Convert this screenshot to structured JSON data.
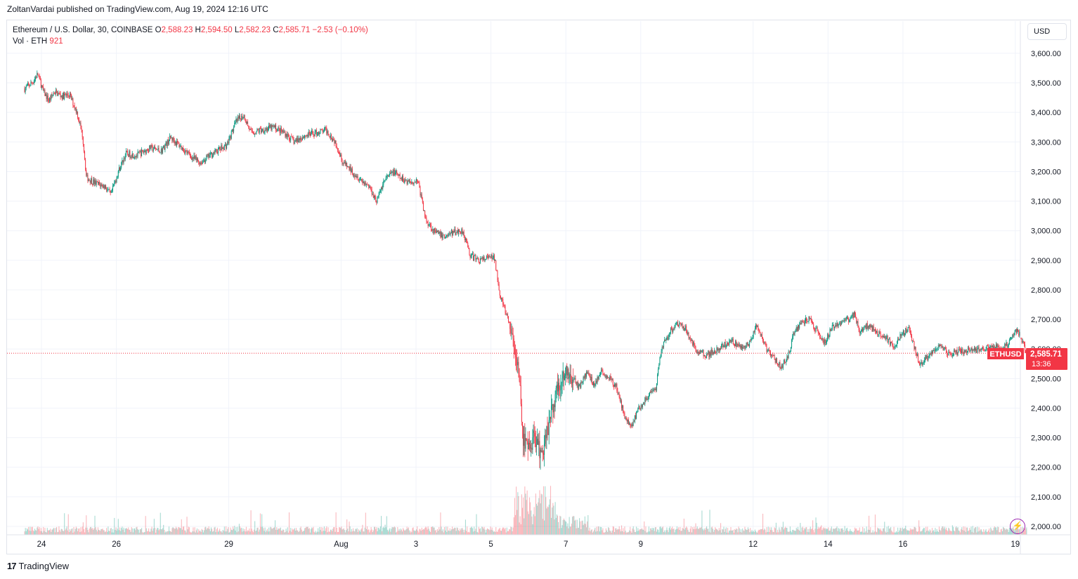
{
  "publisher": "ZoltanVardai published on TradingView.com, Aug 19, 2024 12:16 UTC",
  "legend": {
    "symbol": "Ethereum / U.S. Dollar, 30, COINBASE",
    "o_label": "O",
    "o_value": "2,588.23",
    "h_label": "H",
    "h_value": "2,594.50",
    "l_label": "L",
    "l_value": "2,582.23",
    "c_label": "C",
    "c_value": "2,585.71",
    "change": "−2.53 (−0.10%)",
    "vol_label": "Vol · ETH",
    "vol_value": "921"
  },
  "currency": "USD",
  "price_tag": {
    "symbol": "ETHUSD",
    "price": "2,585.71",
    "countdown": "13:36"
  },
  "footer": {
    "brand": "TradingView",
    "logo": "17"
  },
  "colors": {
    "up": "#089981",
    "down": "#f23645",
    "grid": "#f0f3fa",
    "axis_text": "#131722"
  },
  "chart_data": {
    "type": "candlestick",
    "timeframe": "30",
    "ylim": [
      1975,
      3650
    ],
    "y_ticks": [
      "3,600.00",
      "3,500.00",
      "3,400.00",
      "3,300.00",
      "3,200.00",
      "3,100.00",
      "3,000.00",
      "2,900.00",
      "2,800.00",
      "2,700.00",
      "2,600.00",
      "2,500.00",
      "2,400.00",
      "2,300.00",
      "2,200.00",
      "2,100.00",
      "2,000.00"
    ],
    "y_tick_values": [
      3600,
      3500,
      3400,
      3300,
      3200,
      3100,
      3000,
      2900,
      2800,
      2700,
      2600,
      2500,
      2400,
      2300,
      2200,
      2100,
      2000
    ],
    "x_ticks": [
      "24",
      "26",
      "29",
      "Aug",
      "3",
      "5",
      "7",
      "9",
      "12",
      "14",
      "16",
      "19"
    ],
    "x_tick_days": [
      1,
      3,
      6,
      9,
      11,
      13,
      15,
      17,
      20,
      22,
      24,
      27
    ],
    "day_range": [
      0.55,
      27.3
    ],
    "price_path": [
      [
        0.55,
        3480
      ],
      [
        0.75,
        3500
      ],
      [
        0.9,
        3530
      ],
      [
        1.05,
        3470
      ],
      [
        1.2,
        3440
      ],
      [
        1.35,
        3470
      ],
      [
        1.55,
        3455
      ],
      [
        1.75,
        3460
      ],
      [
        1.95,
        3400
      ],
      [
        2.1,
        3320
      ],
      [
        2.2,
        3180
      ],
      [
        2.45,
        3160
      ],
      [
        2.7,
        3150
      ],
      [
        2.85,
        3120
      ],
      [
        3.05,
        3200
      ],
      [
        3.25,
        3260
      ],
      [
        3.55,
        3255
      ],
      [
        3.9,
        3280
      ],
      [
        4.2,
        3270
      ],
      [
        4.45,
        3315
      ],
      [
        4.75,
        3280
      ],
      [
        5.0,
        3250
      ],
      [
        5.25,
        3230
      ],
      [
        5.55,
        3260
      ],
      [
        5.95,
        3290
      ],
      [
        6.2,
        3370
      ],
      [
        6.4,
        3390
      ],
      [
        6.6,
        3330
      ],
      [
        6.85,
        3340
      ],
      [
        7.2,
        3350
      ],
      [
        7.5,
        3330
      ],
      [
        7.75,
        3300
      ],
      [
        8.0,
        3320
      ],
      [
        8.3,
        3330
      ],
      [
        8.6,
        3340
      ],
      [
        8.85,
        3300
      ],
      [
        9.05,
        3230
      ],
      [
        9.3,
        3200
      ],
      [
        9.55,
        3170
      ],
      [
        9.75,
        3150
      ],
      [
        9.95,
        3100
      ],
      [
        10.15,
        3170
      ],
      [
        10.4,
        3200
      ],
      [
        10.6,
        3175
      ],
      [
        10.85,
        3165
      ],
      [
        11.05,
        3170
      ],
      [
        11.25,
        3040
      ],
      [
        11.5,
        2995
      ],
      [
        11.75,
        2980
      ],
      [
        12.0,
        2995
      ],
      [
        12.25,
        3000
      ],
      [
        12.45,
        2915
      ],
      [
        12.7,
        2900
      ],
      [
        13.0,
        2910
      ],
      [
        13.1,
        2905
      ],
      [
        13.25,
        2780
      ],
      [
        13.45,
        2700
      ],
      [
        13.55,
        2650
      ],
      [
        13.75,
        2530
      ],
      [
        13.85,
        2300
      ],
      [
        14.0,
        2250
      ],
      [
        14.15,
        2310
      ],
      [
        14.35,
        2240
      ],
      [
        14.55,
        2350
      ],
      [
        14.75,
        2460
      ],
      [
        14.95,
        2520
      ],
      [
        15.15,
        2510
      ],
      [
        15.35,
        2470
      ],
      [
        15.55,
        2520
      ],
      [
        15.75,
        2480
      ],
      [
        15.95,
        2520
      ],
      [
        16.1,
        2510
      ],
      [
        16.35,
        2470
      ],
      [
        16.55,
        2380
      ],
      [
        16.75,
        2340
      ],
      [
        16.95,
        2400
      ],
      [
        17.2,
        2440
      ],
      [
        17.4,
        2460
      ],
      [
        17.55,
        2600
      ],
      [
        17.75,
        2650
      ],
      [
        17.95,
        2690
      ],
      [
        18.2,
        2670
      ],
      [
        18.45,
        2600
      ],
      [
        18.75,
        2580
      ],
      [
        19.1,
        2600
      ],
      [
        19.4,
        2630
      ],
      [
        19.7,
        2600
      ],
      [
        19.9,
        2620
      ],
      [
        20.1,
        2680
      ],
      [
        20.35,
        2600
      ],
      [
        20.55,
        2570
      ],
      [
        20.75,
        2540
      ],
      [
        20.95,
        2580
      ],
      [
        21.1,
        2660
      ],
      [
        21.3,
        2690
      ],
      [
        21.5,
        2700
      ],
      [
        21.7,
        2660
      ],
      [
        21.9,
        2620
      ],
      [
        22.1,
        2670
      ],
      [
        22.3,
        2690
      ],
      [
        22.55,
        2700
      ],
      [
        22.7,
        2720
      ],
      [
        22.85,
        2660
      ],
      [
        23.05,
        2680
      ],
      [
        23.3,
        2660
      ],
      [
        23.55,
        2640
      ],
      [
        23.75,
        2600
      ],
      [
        23.95,
        2650
      ],
      [
        24.15,
        2670
      ],
      [
        24.35,
        2590
      ],
      [
        24.45,
        2540
      ],
      [
        24.65,
        2570
      ],
      [
        24.85,
        2600
      ],
      [
        25.05,
        2610
      ],
      [
        25.25,
        2580
      ],
      [
        25.45,
        2590
      ],
      [
        25.75,
        2595
      ],
      [
        26.05,
        2600
      ],
      [
        26.35,
        2610
      ],
      [
        26.65,
        2600
      ],
      [
        26.9,
        2630
      ],
      [
        27.0,
        2670
      ],
      [
        27.15,
        2640
      ],
      [
        27.3,
        2586
      ]
    ],
    "last_price": 2585.71
  }
}
